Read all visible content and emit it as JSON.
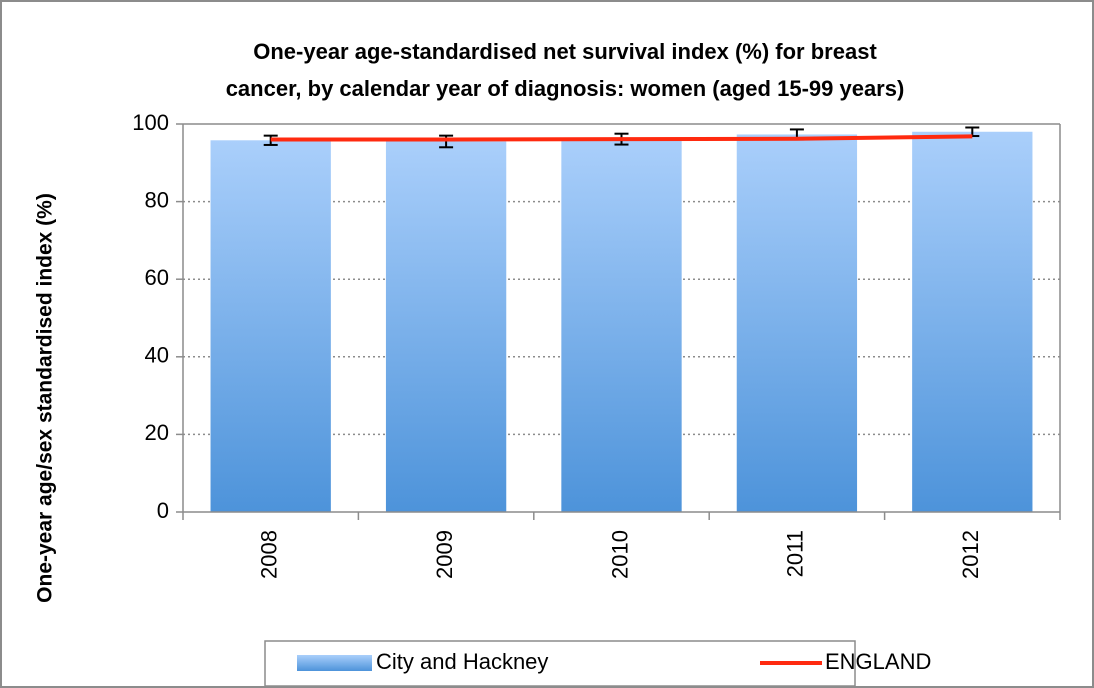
{
  "chart_data": {
    "type": "bar",
    "title": [
      "One-year age-standardised net survival index (%) for breast",
      "cancer, by calendar year of diagnosis: women (aged 15-99 years)"
    ],
    "y_label": "One-year age/sex standardised index (%)",
    "categories": [
      "2008",
      "2009",
      "2010",
      "2011",
      "2012"
    ],
    "series": [
      {
        "name": "City and Hackney",
        "type": "bar",
        "color": "#7fb0ea",
        "gradient": [
          "#aacffb",
          "#4d93da"
        ],
        "values": [
          95.8,
          95.5,
          96.1,
          97.3,
          98.0
        ],
        "errors": [
          1.2,
          1.5,
          1.4,
          1.3,
          1.1
        ]
      },
      {
        "name": "ENGLAND",
        "type": "line",
        "color": "#ff2a0f",
        "values": [
          96.0,
          96.0,
          96.1,
          96.2,
          96.8
        ]
      }
    ],
    "ylim": [
      0,
      100
    ],
    "yticks": [
      0,
      20,
      40,
      60,
      80,
      100
    ],
    "grid": true,
    "legend": "bottom"
  }
}
